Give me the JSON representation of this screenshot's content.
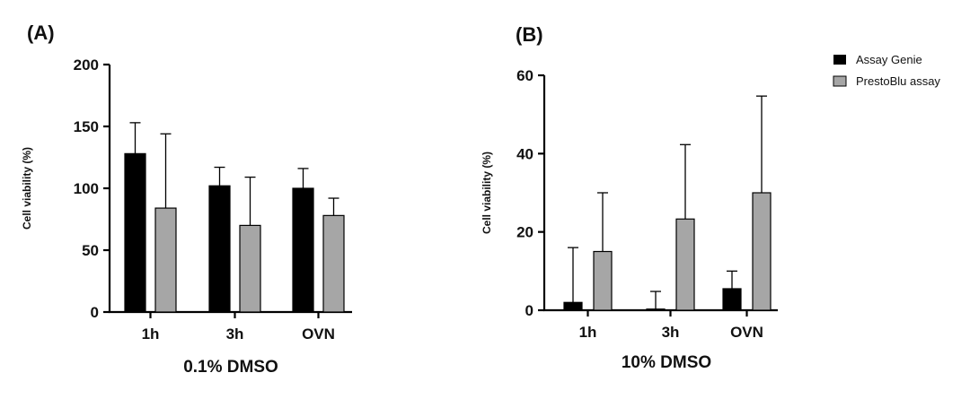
{
  "legend": [
    {
      "name": "Assay Genie",
      "color": "#000000"
    },
    {
      "name": "PrestoBlu assay",
      "color": "#a6a6a6"
    }
  ],
  "chart_data": [
    {
      "type": "bar",
      "panel_label": "(A)",
      "title": "",
      "xlabel": "0.1% DMSO",
      "ylabel": "Cell viability (%)",
      "categories": [
        "1h",
        "3h",
        "OVN"
      ],
      "ylim": [
        0,
        200
      ],
      "yticks": [
        0,
        50,
        100,
        150,
        200
      ],
      "series": [
        {
          "name": "Assay Genie",
          "color": "#000000",
          "values": [
            128,
            102,
            100
          ],
          "errors": [
            25,
            15,
            16
          ]
        },
        {
          "name": "PrestoBlu assay",
          "color": "#a6a6a6",
          "values": [
            84,
            70,
            78
          ],
          "errors": [
            60,
            39,
            14
          ]
        }
      ]
    },
    {
      "type": "bar",
      "panel_label": "(B)",
      "title": "",
      "xlabel": "10% DMSO",
      "ylabel": "Cell viability (%)",
      "categories": [
        "1h",
        "3h",
        "OVN"
      ],
      "ylim": [
        0,
        60
      ],
      "yticks": [
        0,
        20,
        40,
        60
      ],
      "series": [
        {
          "name": "Assay Genie",
          "color": "#000000",
          "values": [
            2,
            0.3,
            5.5
          ],
          "errors": [
            14,
            4.5,
            4.5
          ]
        },
        {
          "name": "PrestoBlu assay",
          "color": "#a6a6a6",
          "values": [
            15,
            23.3,
            30
          ],
          "errors": [
            15,
            19,
            24.7
          ]
        }
      ]
    }
  ]
}
